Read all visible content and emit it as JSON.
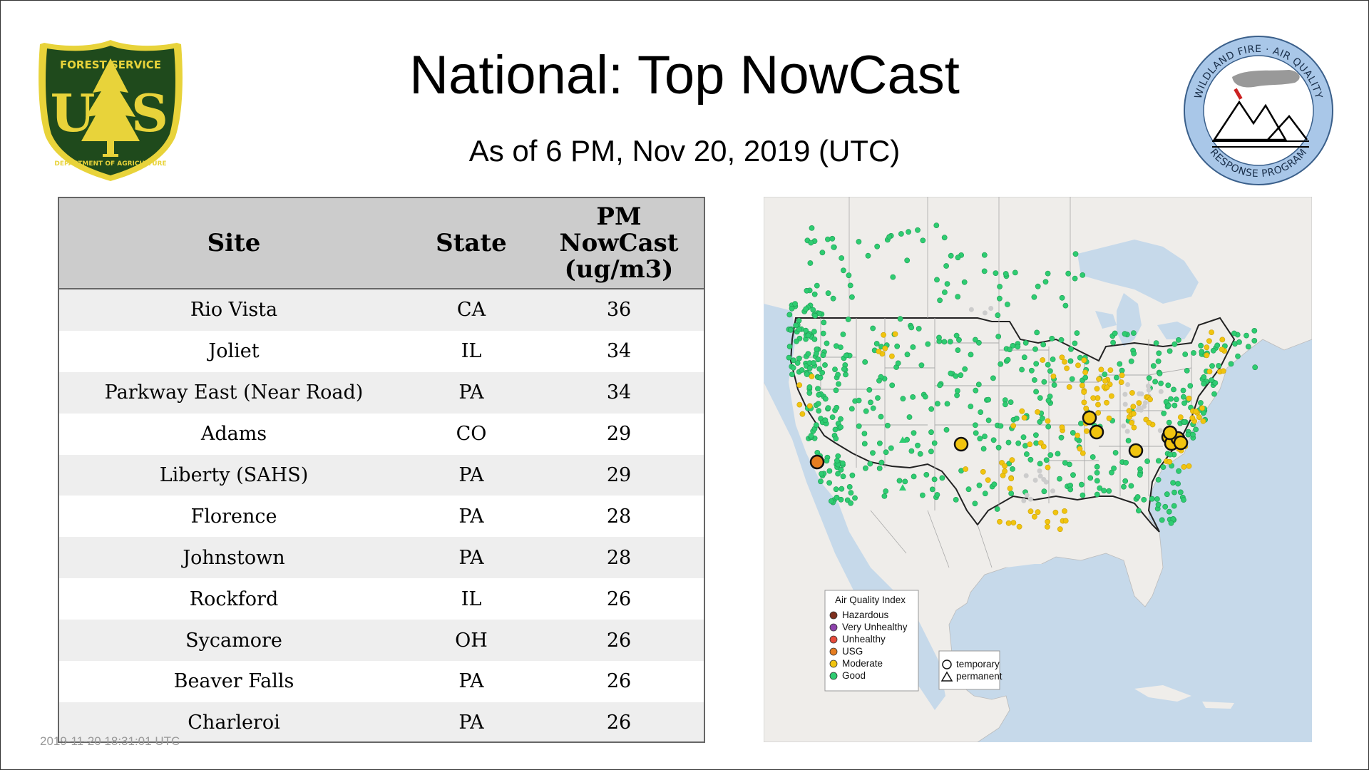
{
  "title": "National: Top NowCast",
  "subtitle": "As of  6 PM, Nov 20, 2019 (UTC)",
  "logos": {
    "left": "Forest Service US Department of Agriculture shield",
    "right": "Wildland Fire Air Quality Response Program seal"
  },
  "table": {
    "headers": {
      "site": "Site",
      "state": "State",
      "pm_1": "PM",
      "pm_2": "NowCast",
      "pm_3": "(ug/m3)"
    },
    "rows": [
      {
        "site": "Rio Vista",
        "state": "CA",
        "value": "36"
      },
      {
        "site": "Joliet",
        "state": "IL",
        "value": "34"
      },
      {
        "site": "Parkway East (Near Road)",
        "state": "PA",
        "value": "34"
      },
      {
        "site": "Adams",
        "state": "CO",
        "value": "29"
      },
      {
        "site": "Liberty (SAHS)",
        "state": "PA",
        "value": "29"
      },
      {
        "site": "Florence",
        "state": "PA",
        "value": "28"
      },
      {
        "site": "Johnstown",
        "state": "PA",
        "value": "28"
      },
      {
        "site": "Rockford",
        "state": "IL",
        "value": "26"
      },
      {
        "site": "Sycamore",
        "state": "OH",
        "value": "26"
      },
      {
        "site": "Beaver Falls",
        "state": "PA",
        "value": "26"
      },
      {
        "site": "Charleroi",
        "state": "PA",
        "value": "26"
      }
    ]
  },
  "timestamp": "2019-11-20 18:31:01 UTC",
  "map": {
    "legend_title": "Air Quality Index",
    "legend_items": [
      {
        "label": "Hazardous",
        "color": "#7e2f1e"
      },
      {
        "label": "Very Unhealthy",
        "color": "#8e44ad"
      },
      {
        "label": "Unhealthy",
        "color": "#e74c3c"
      },
      {
        "label": "USG",
        "color": "#e67e22"
      },
      {
        "label": "Moderate",
        "color": "#f1c40f"
      },
      {
        "label": "Good",
        "color": "#2ecc71"
      }
    ],
    "shape_items": [
      {
        "label": "temporary",
        "shape": "circle"
      },
      {
        "label": "permanent",
        "shape": "triangle"
      }
    ],
    "colors": {
      "water": "#c6d9ea",
      "land": "#efedea",
      "good": "#2ecc71",
      "moderate": "#f1c40f",
      "usg": "#e67e22"
    }
  }
}
